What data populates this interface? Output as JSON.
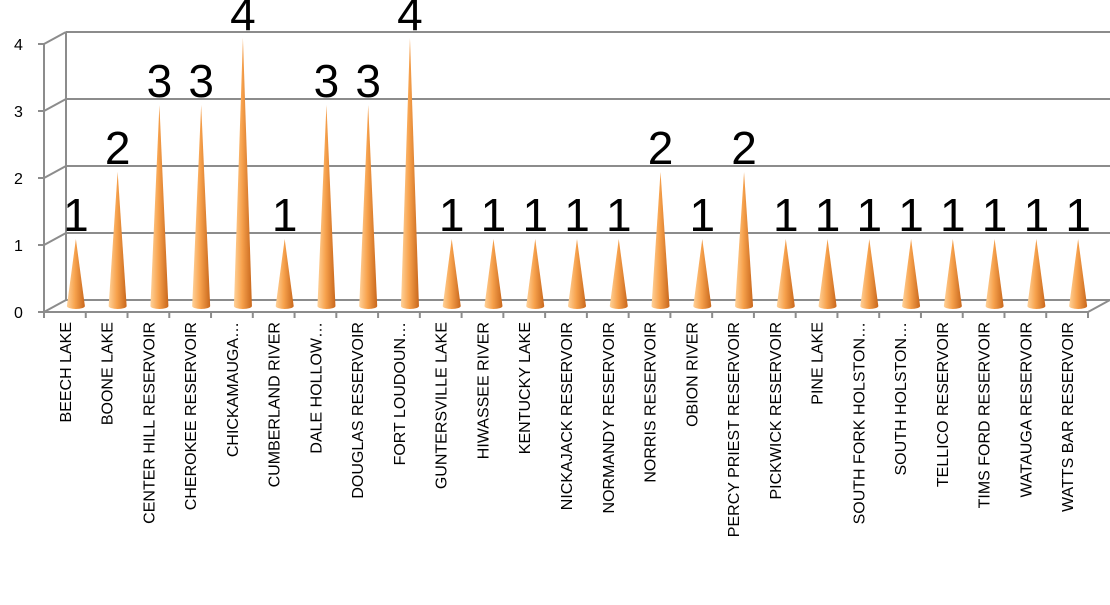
{
  "chart_data": {
    "type": "bar",
    "style": "3d-cone",
    "categories": [
      "BEECH LAKE",
      "BOONE LAKE",
      "CENTER HILL RESERVOIR",
      "CHEROKEE RESERVOIR",
      "CHICKAMAUGA…",
      "CUMBERLAND RIVER",
      "DALE HOLLOW…",
      "DOUGLAS RESERVOIR",
      "FORT LOUDOUN…",
      "GUNTERSVILLE LAKE",
      "HIWASSEE RIVER",
      "KENTUCKY LAKE",
      "NICKAJACK RESERVOIR",
      "NORMANDY RESERVOIR",
      "NORRIS RESERVOIR",
      "OBION RIVER",
      "PERCY PRIEST RESERVOIR",
      "PICKWICK RESERVOIR",
      "PINE LAKE",
      "SOUTH FORK HOLSTON…",
      "SOUTH HOLSTON…",
      "TELLICO RESERVOIR",
      "TIMS FORD RESERVOIR",
      "WATAUGA RESERVOIR",
      "WATTS BAR RESERVOIR"
    ],
    "values": [
      1,
      2,
      3,
      3,
      4,
      1,
      3,
      3,
      4,
      1,
      1,
      1,
      1,
      1,
      2,
      1,
      2,
      1,
      1,
      1,
      1,
      1,
      1,
      1,
      1
    ],
    "data_labels": [
      "1",
      "2",
      "3",
      "3",
      "4",
      "1",
      "3",
      "3",
      "4",
      "1",
      "1",
      "1",
      "1",
      "1",
      "2",
      "1",
      "2",
      "1",
      "1",
      "1",
      "1",
      "1",
      "1",
      "1",
      "1"
    ],
    "y_ticks": [
      "0",
      "1",
      "2",
      "3",
      "4"
    ],
    "ylim": [
      0,
      4
    ],
    "title": "",
    "xlabel": "",
    "ylabel": "",
    "grid": true,
    "legend": "none",
    "colors": {
      "cone_light": "#ffd29a",
      "cone_mid": "#f7a24d",
      "cone_dark": "#c8671c",
      "gridline": "#8c8c8c",
      "wall": "#ffffff"
    }
  }
}
